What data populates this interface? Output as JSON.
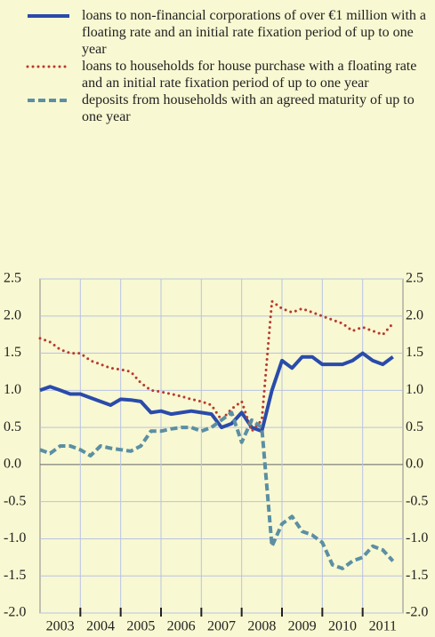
{
  "chart_data": {
    "type": "line",
    "categories": [
      "2003",
      "2004",
      "2005",
      "2006",
      "2007",
      "2008",
      "2009",
      "2010",
      "2011"
    ],
    "x": [
      2003.0,
      2003.25,
      2003.5,
      2003.75,
      2004.0,
      2004.25,
      2004.5,
      2004.75,
      2005.0,
      2005.25,
      2005.5,
      2005.75,
      2006.0,
      2006.25,
      2006.5,
      2006.75,
      2007.0,
      2007.25,
      2007.5,
      2007.75,
      2008.0,
      2008.25,
      2008.5,
      2008.75,
      2009.0,
      2009.25,
      2009.5,
      2009.75,
      2010.0,
      2010.25,
      2010.5,
      2010.75,
      2011.0,
      2011.25,
      2011.5,
      2011.75
    ],
    "series": [
      {
        "name": "loans to non-financial corporations of over €1 million with a floating rate and an initial rate fixation period of up to one year",
        "color": "#2a4bab",
        "style": "solid",
        "values": [
          1.0,
          1.05,
          1.0,
          0.95,
          0.95,
          0.9,
          0.85,
          0.8,
          0.88,
          0.87,
          0.85,
          0.7,
          0.72,
          0.68,
          0.7,
          0.72,
          0.7,
          0.68,
          0.5,
          0.55,
          0.7,
          0.5,
          0.45,
          1.0,
          1.4,
          1.3,
          1.45,
          1.45,
          1.35,
          1.35,
          1.35,
          1.4,
          1.5,
          1.4,
          1.35,
          1.45
        ]
      },
      {
        "name": "loans to households for house purchase with a floating rate and an initial rate fixation period of up to one year",
        "color": "#b83a2c",
        "style": "dotted",
        "values": [
          1.7,
          1.65,
          1.55,
          1.5,
          1.5,
          1.4,
          1.35,
          1.3,
          1.28,
          1.25,
          1.1,
          1.0,
          0.98,
          0.95,
          0.92,
          0.88,
          0.85,
          0.8,
          0.6,
          0.75,
          0.85,
          0.45,
          0.6,
          2.2,
          2.1,
          2.05,
          2.1,
          2.05,
          2.0,
          1.95,
          1.9,
          1.8,
          1.85,
          1.8,
          1.75,
          1.9
        ]
      },
      {
        "name": "deposits from households with an agreed maturity of up to one year",
        "color": "#5b8fa3",
        "style": "dashed",
        "values": [
          0.2,
          0.15,
          0.25,
          0.25,
          0.2,
          0.12,
          0.25,
          0.22,
          0.2,
          0.18,
          0.25,
          0.45,
          0.45,
          0.48,
          0.5,
          0.5,
          0.45,
          0.5,
          0.6,
          0.7,
          0.3,
          0.6,
          0.5,
          -1.1,
          -0.8,
          -0.7,
          -0.9,
          -0.95,
          -1.05,
          -1.35,
          -1.4,
          -1.3,
          -1.25,
          -1.1,
          -1.15,
          -1.3
        ]
      }
    ],
    "xlim": [
      2003,
      2012
    ],
    "xticks": [
      2004,
      2005,
      2006,
      2007,
      2008,
      2009,
      2010,
      2011
    ],
    "ylim": [
      -2,
      2.5
    ],
    "yticks": [
      {
        "value": -2,
        "label": "-2.0"
      },
      -1.5,
      {
        "value": -1,
        "label": "-1.0"
      },
      -0.5,
      {
        "value": 0,
        "label": "0.0"
      },
      0.5,
      {
        "value": 1,
        "label": "1.0"
      },
      1.5,
      {
        "value": 2,
        "label": "2.0"
      },
      2.5
    ],
    "grid": true
  }
}
